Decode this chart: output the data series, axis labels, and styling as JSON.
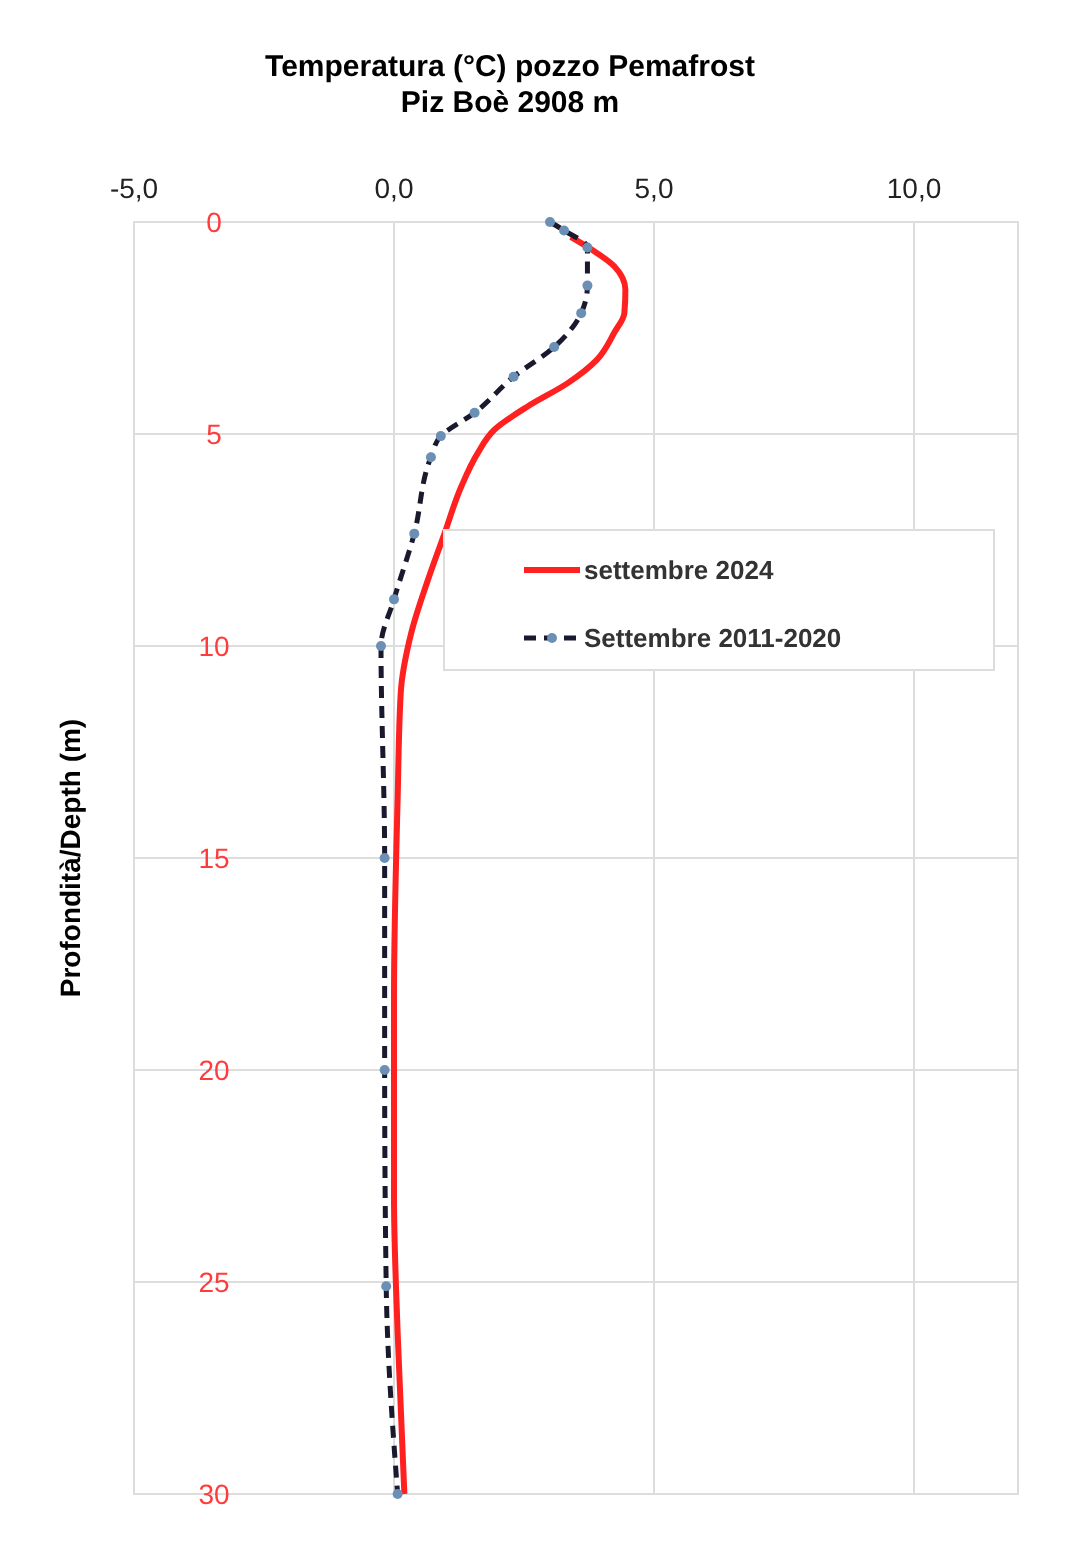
{
  "chart_data": {
    "type": "line",
    "title": "Temperatura (°C)  pozzo Pemafrost",
    "subtitle": "Piz Boè 2908 m",
    "ylabel": "Profondità/Depth (m)",
    "xlim": [
      -5,
      12
    ],
    "xticks": [
      {
        "value": -5,
        "label": "-5,0"
      },
      {
        "value": 0,
        "label": "0,0"
      },
      {
        "value": 5,
        "label": "5,0"
      },
      {
        "value": 10,
        "label": "10,0"
      }
    ],
    "ylim": [
      30,
      0
    ],
    "yticks": [
      0,
      5,
      10,
      15,
      20,
      25,
      30
    ],
    "grid": true,
    "legend": "right",
    "series": [
      {
        "name": "settembre 2024",
        "color": "#ff2020",
        "line_style": "solid",
        "marker": "none",
        "x": [
          3.4,
          3.8,
          4.24,
          4.45,
          4.43,
          4.24,
          3.9,
          3.34,
          2.57,
          1.93,
          1.61,
          1.29,
          0.97,
          0.65,
          0.33,
          0.13,
          0.07,
          0.0,
          0.0,
          0.07,
          0.2
        ],
        "values": [
          0.35,
          0.65,
          1.05,
          1.6,
          2.15,
          2.6,
          3.25,
          3.8,
          4.35,
          4.9,
          5.45,
          6.25,
          7.35,
          8.45,
          9.7,
          11.1,
          13.6,
          18.3,
          23,
          26.2,
          30
        ]
      },
      {
        "name": "Settembre  2011-2020",
        "color": "#1a1a2e",
        "line_style": "dashed",
        "marker": "circle",
        "x": [
          3.0,
          3.27,
          3.72,
          3.72,
          3.6,
          3.08,
          2.3,
          1.55,
          0.9,
          0.71,
          0.39,
          0.0,
          -0.25,
          -0.18,
          -0.18,
          -0.15,
          0.07
        ],
        "values": [
          0,
          0.2,
          0.6,
          1.5,
          2.15,
          2.95,
          3.65,
          4.5,
          5.05,
          5.55,
          7.35,
          8.9,
          10,
          15,
          20,
          25.1,
          30
        ]
      }
    ]
  }
}
